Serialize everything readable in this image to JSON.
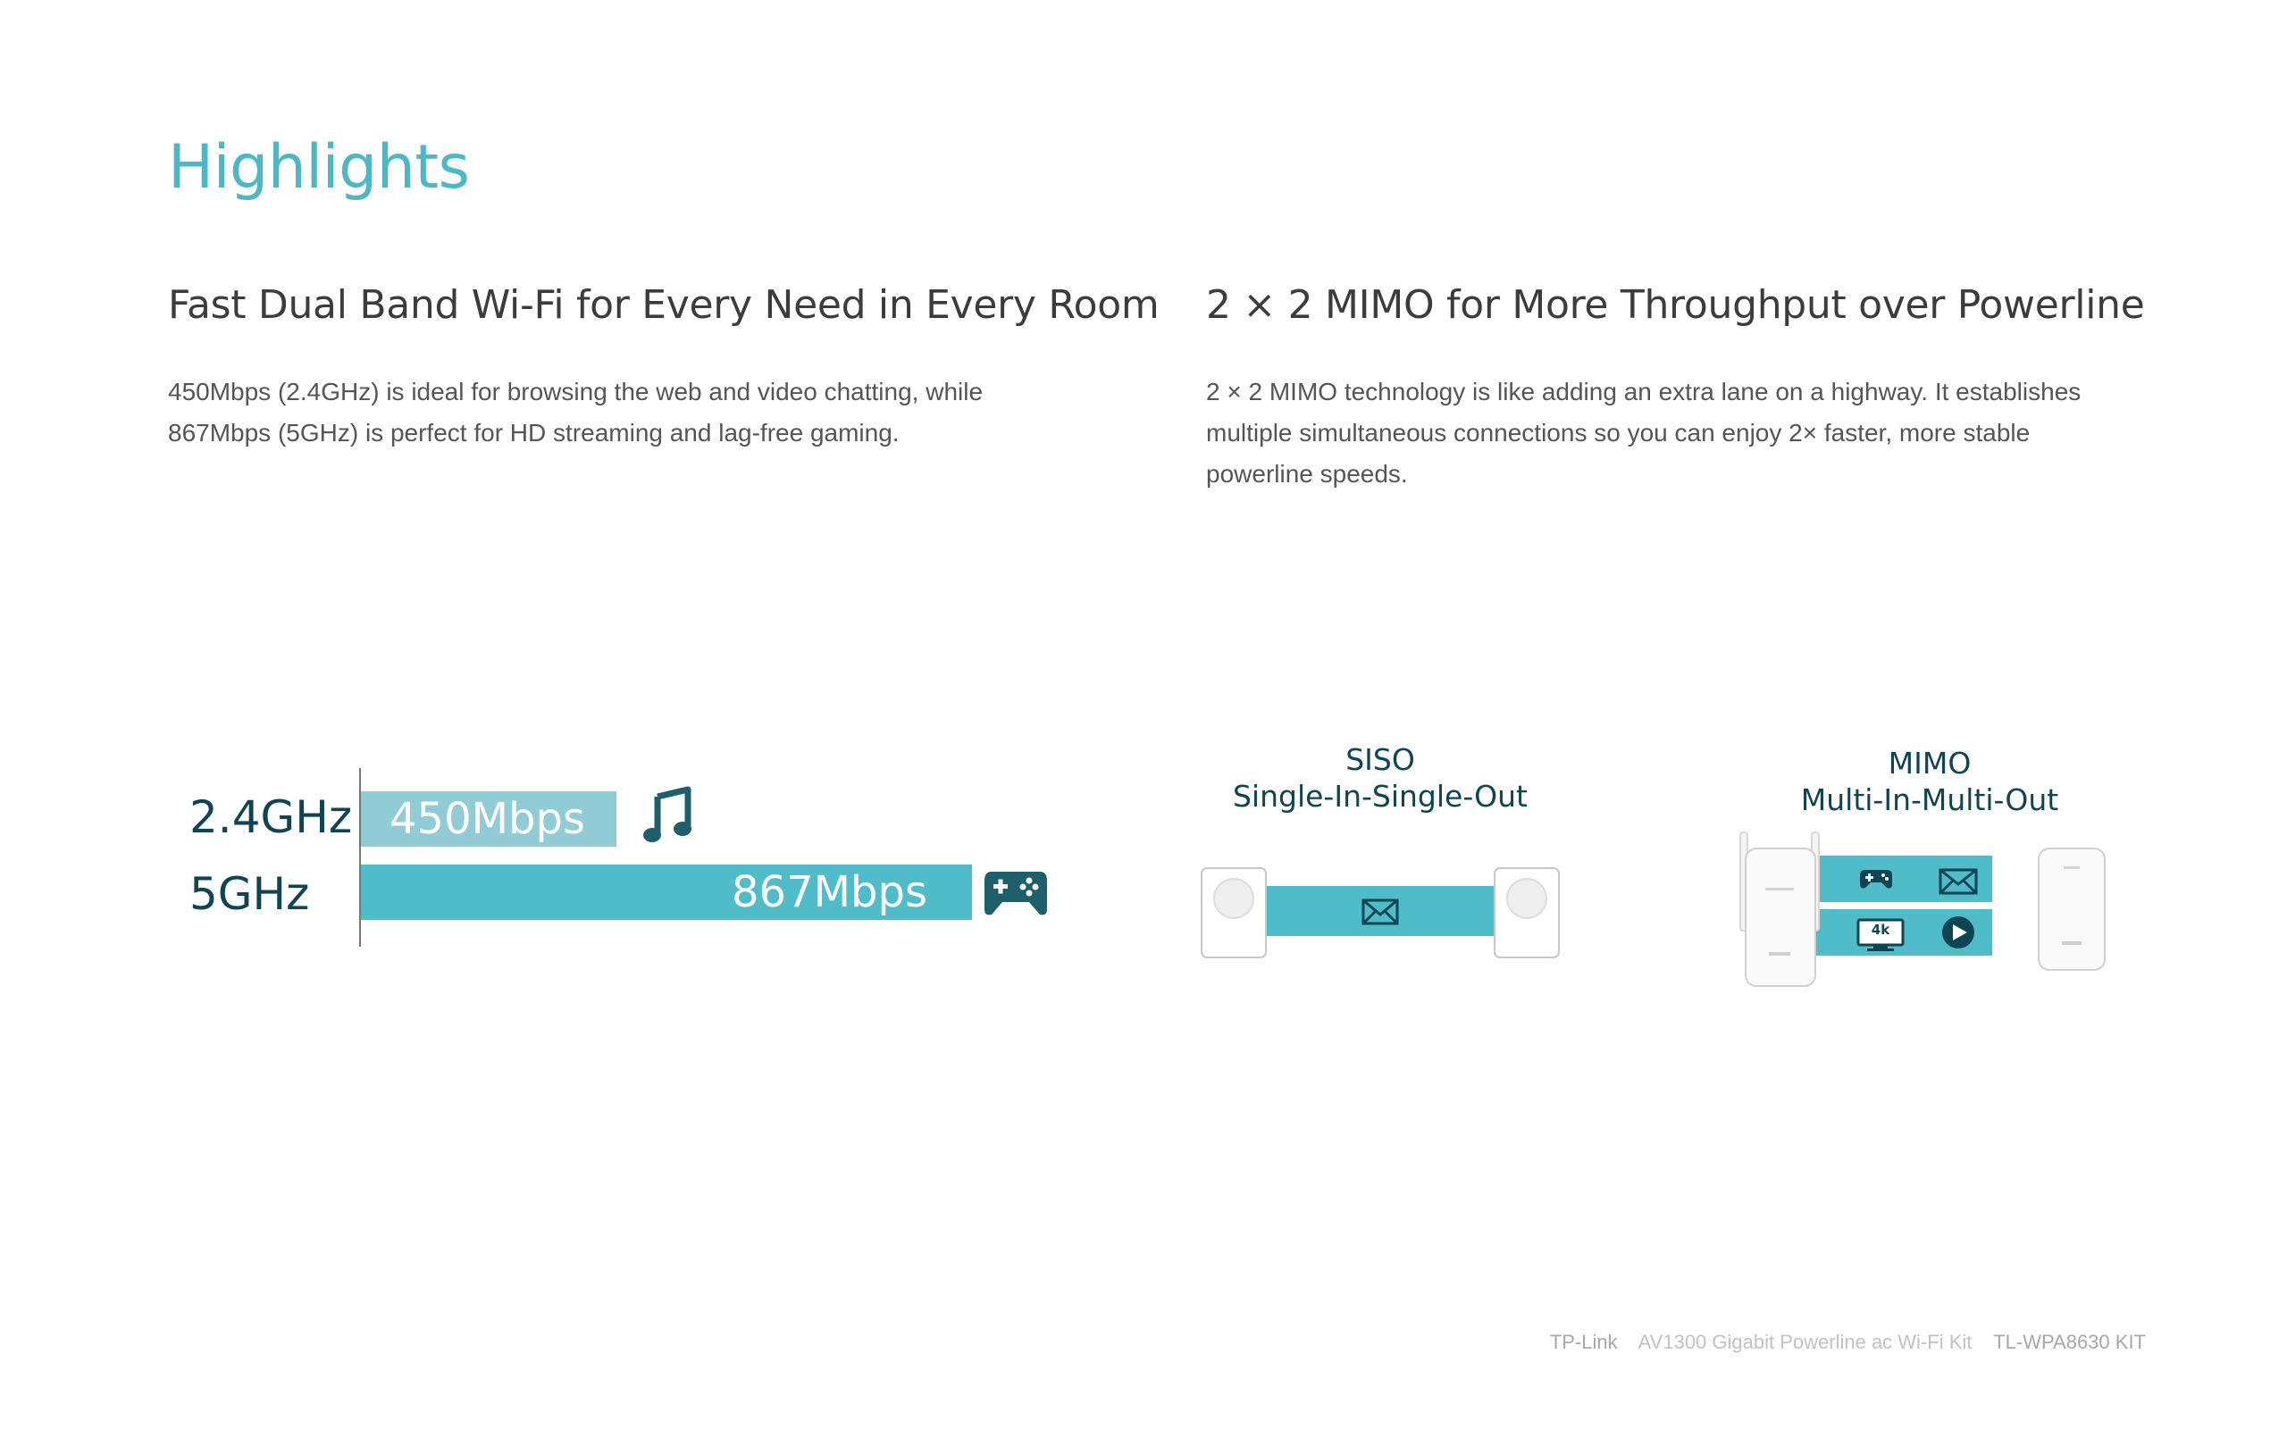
{
  "page": {
    "title": "Highlights"
  },
  "sections": [
    {
      "heading": "Fast Dual Band Wi-Fi for Every Need in Every Room",
      "lines": [
        "450Mbps (2.4GHz) is ideal for browsing the web and video chatting, while",
        "867Mbps (5GHz) is perfect for HD streaming and lag-free gaming."
      ]
    },
    {
      "heading": "2 × 2 MIMO for More Throughput over Powerline",
      "lines": [
        "2 × 2 MIMO technology is like adding an extra lane on a highway. It establishes",
        "multiple simultaneous connections so you can enjoy 2× faster, more stable",
        "powerline speeds."
      ]
    }
  ],
  "dual_band": {
    "band_24_label": "2.4GHz",
    "band_5_label": "5GHz",
    "bar_24_label": "450Mbps",
    "bar_5_label": "867Mbps",
    "bar_24_icon": "music-note-icon",
    "bar_5_icon": "gamepad-icon",
    "colors": {
      "bar_24": "#8fccd5",
      "bar_5": "#4fbcc9",
      "text": "#0e4552"
    }
  },
  "siso": {
    "title": "SISO",
    "subtitle": "Single-In-Single-Out",
    "icon": "envelope-icon"
  },
  "mimo": {
    "title": "MIMO",
    "subtitle": "Multi-In-Multi-Out",
    "icons": [
      "gamepad-icon",
      "envelope-icon",
      "4k-monitor-icon",
      "play-icon"
    ],
    "monitor_badge": "4k"
  },
  "footer": {
    "brand": "TP-Link",
    "product": "AV1300 Gigabit Powerline ac Wi-Fi Kit",
    "model": "TL-WPA8630 KIT"
  }
}
